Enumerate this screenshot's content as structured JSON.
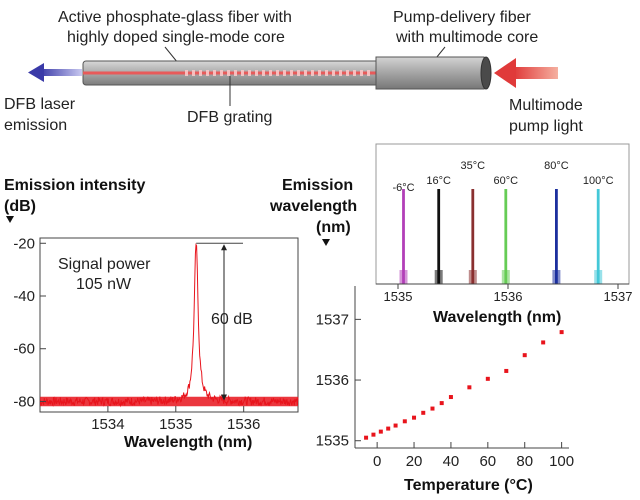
{
  "schematic": {
    "active_fiber_label_1": "Active phosphate-glass fiber with",
    "active_fiber_label_2": "highly doped single-mode core",
    "pump_fiber_label_1": "Pump-delivery fiber",
    "pump_fiber_label_2": "with multimode core",
    "dfb_emission_label_1": "DFB laser",
    "dfb_emission_label_2": "emission",
    "dfb_grating_label": "DFB grating",
    "pump_light_label_1": "Multimode",
    "pump_light_label_2": "pump light",
    "colors": {
      "emission_arrow": "#3a3aa8",
      "pump_arrow": "#e04040",
      "core": "#e85a5a",
      "fiber": "#a9a9a9"
    }
  },
  "chart_data": [
    {
      "type": "line",
      "name": "emission-spectrum",
      "ylabel_1": "Emission intensity",
      "ylabel_2": "(dB)",
      "xlabel": "Wavelength (nm)",
      "xlim": [
        1533,
        1536.8
      ],
      "ylim": [
        -84,
        -18
      ],
      "x_ticks": [
        1534,
        1535,
        1536
      ],
      "x_tick_labels": [
        "1534",
        "1535",
        "1536"
      ],
      "y_ticks": [
        -20,
        -40,
        -60,
        -80
      ],
      "y_tick_labels": [
        "-20",
        "-40",
        "-60",
        "-80"
      ],
      "peak_x": 1535.3,
      "peak_y": -20,
      "noise_floor": -80,
      "annotations": {
        "signal_1": "Signal power",
        "signal_2": "105 nW",
        "range": "60 dB"
      },
      "color": "#e8141c"
    },
    {
      "type": "line",
      "name": "tuning-spectra",
      "xlabel": "Wavelength (nm)",
      "xlim": [
        1534.8,
        1537.1
      ],
      "x_ticks": [
        1535,
        1536,
        1537
      ],
      "x_tick_labels": [
        "1535",
        "1536",
        "1537"
      ],
      "series": [
        {
          "name": "-6°C",
          "x": 1535.05,
          "color": "#b23fb8"
        },
        {
          "name": "16°C",
          "x": 1535.37,
          "color": "#111111"
        },
        {
          "name": "35°C",
          "x": 1535.68,
          "color": "#8a3030"
        },
        {
          "name": "60°C",
          "x": 1535.98,
          "color": "#66cc55"
        },
        {
          "name": "80°C",
          "x": 1536.44,
          "color": "#1c2f9e"
        },
        {
          "name": "100°C",
          "x": 1536.82,
          "color": "#44c8d8"
        }
      ]
    },
    {
      "type": "scatter",
      "name": "wavelength-vs-temperature",
      "ylabel_1": "Emission",
      "ylabel_2": "wavelength",
      "ylabel_3": "(nm)",
      "xlabel": "Temperature (°C)",
      "xlim": [
        -12,
        104
      ],
      "ylim": [
        1534.88,
        1537.55
      ],
      "x_ticks": [
        0,
        20,
        40,
        60,
        80,
        100
      ],
      "x_tick_labels": [
        "0",
        "20",
        "40",
        "60",
        "80",
        "100"
      ],
      "y_ticks": [
        1535,
        1536,
        1537
      ],
      "y_tick_labels": [
        "1535",
        "1536",
        "1537"
      ],
      "x": [
        -6,
        -2,
        2,
        6,
        10,
        15,
        20,
        25,
        30,
        35,
        40,
        50,
        60,
        70,
        80,
        90,
        100
      ],
      "y": [
        1535.05,
        1535.1,
        1535.15,
        1535.2,
        1535.25,
        1535.32,
        1535.38,
        1535.46,
        1535.53,
        1535.62,
        1535.72,
        1535.88,
        1536.02,
        1536.15,
        1536.41,
        1536.62,
        1536.79
      ],
      "color": "#e8141c"
    }
  ]
}
